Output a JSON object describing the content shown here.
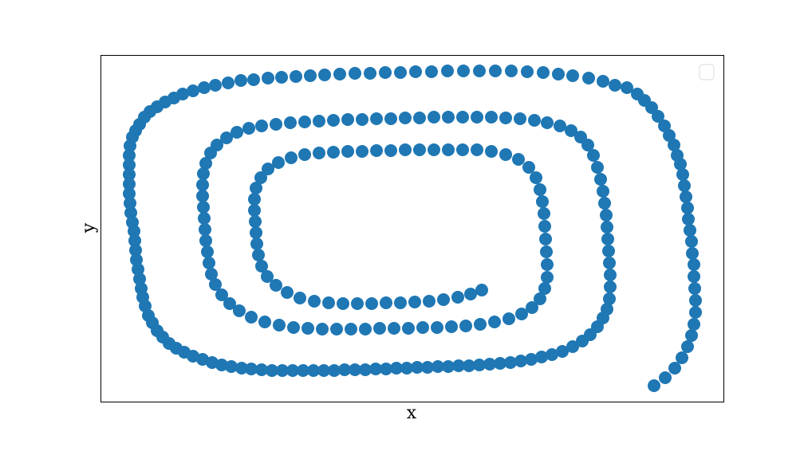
{
  "chart_data": {
    "type": "scatter",
    "x_label": "x",
    "y_label": "y",
    "color": "#1f77b4",
    "legend": "upper right",
    "xlim": [
      126,
      907
    ],
    "ylim": [
      72,
      507
    ],
    "x": [
      820,
      834,
      846,
      855,
      862,
      867,
      870,
      872,
      872,
      871,
      870,
      870,
      868,
      867,
      865,
      863,
      862,
      860,
      858,
      856,
      853,
      849,
      845,
      839,
      833,
      825,
      817,
      808,
      799,
      786,
      771,
      756,
      738,
      718,
      700,
      681,
      661,
      641,
      621,
      601,
      581,
      561,
      541,
      521,
      502,
      483,
      464,
      445,
      426,
      407,
      389,
      371,
      353,
      336,
      318,
      302,
      286,
      270,
      256,
      242,
      229,
      218,
      207,
      197,
      188,
      181,
      175,
      170,
      166,
      163,
      162,
      162,
      162,
      162,
      162,
      163,
      164,
      166,
      168,
      169,
      170,
      171,
      173,
      175,
      177,
      179,
      182,
      186,
      191,
      197,
      204,
      212,
      221,
      231,
      242,
      254,
      266,
      278,
      290,
      303,
      315,
      328,
      341,
      354,
      367,
      380,
      393,
      406,
      419,
      432,
      445,
      458,
      471,
      484,
      497,
      510,
      523,
      536,
      549,
      562,
      575,
      588,
      601,
      614,
      627,
      640,
      653,
      666,
      679,
      692,
      705,
      718,
      730,
      740,
      749,
      756,
      761,
      764,
      765,
      765,
      764,
      763,
      762,
      761,
      760,
      758,
      756,
      753,
      749,
      744,
      737,
      728,
      716,
      702,
      686,
      670,
      652,
      634,
      616,
      598,
      580,
      562,
      544,
      526,
      508,
      490,
      472,
      454,
      436,
      418,
      400,
      382,
      364,
      346,
      328,
      312,
      297,
      284,
      272,
      264,
      258,
      255,
      254,
      254,
      255,
      256,
      257,
      258,
      260,
      262,
      265,
      270,
      278,
      288,
      300,
      315,
      332,
      350,
      368,
      386,
      404,
      422,
      440,
      458,
      476,
      494,
      512,
      530,
      548,
      566,
      584,
      602,
      620,
      638,
      654,
      667,
      677,
      683,
      686,
      686,
      685,
      684,
      683,
      682,
      680,
      677,
      672,
      663,
      650,
      634,
      616,
      598,
      580,
      562,
      544,
      526,
      508,
      490,
      472,
      454,
      436,
      418,
      400,
      382,
      365,
      349,
      336,
      327,
      321,
      319,
      319,
      320,
      321,
      322,
      324,
      328,
      335,
      346,
      360,
      376,
      394,
      412,
      430,
      448,
      466,
      484,
      502,
      520,
      538,
      556,
      574,
      590,
      604
    ],
    "values": [
      92,
      102,
      114,
      127,
      141,
      155,
      169,
      184,
      199,
      214,
      229,
      244,
      258,
      273,
      287,
      301,
      315,
      329,
      343,
      357,
      370,
      381,
      394,
      406,
      418,
      430,
      441,
      450,
      458,
      466,
      469,
      474,
      478,
      481,
      483,
      485,
      486,
      487,
      487,
      487,
      487,
      487,
      486,
      486,
      485,
      485,
      484,
      484,
      483,
      482,
      481,
      480,
      479,
      478,
      476,
      475,
      472,
      469,
      466,
      462,
      458,
      453,
      448,
      442,
      436,
      429,
      420,
      412,
      404,
      393,
      381,
      369,
      357,
      345,
      333,
      321,
      309,
      297,
      286,
      274,
      262,
      250,
      238,
      226,
      214,
      203,
      192,
      180,
      171,
      161,
      153,
      145,
      139,
      134,
      129,
      125,
      121,
      118,
      116,
      114,
      113,
      112,
      111,
      111,
      111,
      111,
      111,
      111,
      111,
      112,
      112,
      112,
      113,
      113,
      114,
      114,
      115,
      115,
      116,
      116,
      117,
      117,
      118,
      119,
      120,
      121,
      123,
      125,
      128,
      131,
      135,
      141,
      148,
      156,
      166,
      177,
      188,
      201,
      216,
      231,
      246,
      261,
      276,
      291,
      306,
      321,
      336,
      351,
      366,
      381,
      394,
      404,
      412,
      418,
      422,
      425,
      427,
      428,
      429,
      429,
      429,
      429,
      429,
      428,
      428,
      427,
      427,
      426,
      426,
      425,
      424,
      423,
      422,
      420,
      418,
      415,
      410,
      403,
      394,
      384,
      371,
      358,
      344,
      330,
      316,
      302,
      288,
      274,
      260,
      246,
      232,
      219,
      206,
      195,
      186,
      178,
      172,
      168,
      165,
      164,
      163,
      163,
      163,
      163,
      164,
      164,
      164,
      165,
      165,
      166,
      167,
      169,
      172,
      176,
      182,
      190,
      201,
      214,
      228,
      244,
      260,
      276,
      292,
      308,
      323,
      338,
      353,
      366,
      376,
      382,
      386,
      388,
      388,
      388,
      388,
      388,
      388,
      387,
      387,
      386,
      386,
      385,
      384,
      382,
      378,
      372,
      364,
      353,
      340,
      326,
      312,
      298,
      284,
      270,
      256,
      242,
      229,
      218,
      209,
      202,
      198,
      196,
      195,
      195,
      195,
      196,
      196,
      197,
      198,
      200,
      203,
      207,
      212
    ]
  }
}
